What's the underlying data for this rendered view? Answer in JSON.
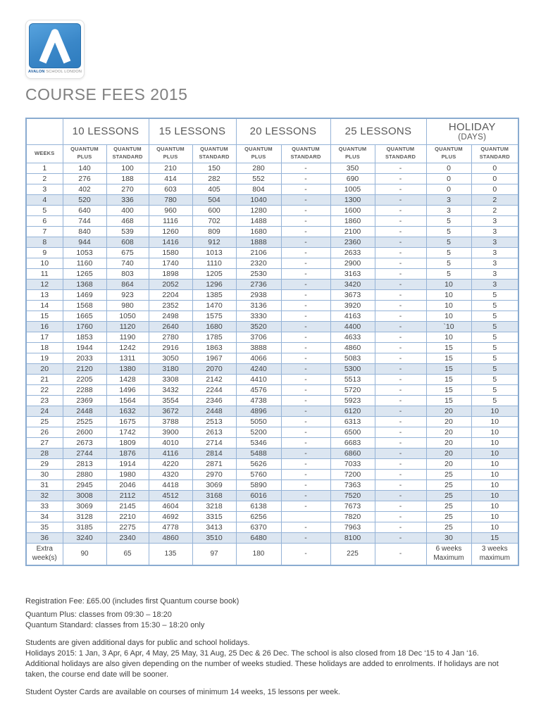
{
  "logo": {
    "brand": "AVALON",
    "tagline": "SCHOOL LONDON",
    "icon": "caret-a-icon",
    "blue": "#3a87c8"
  },
  "title": "COURSE FEES 2015",
  "table": {
    "weeks_header": "WEEKS",
    "group_headers": [
      "10 LESSONS",
      "15 LESSONS",
      "20 LESSONS",
      "25 LESSONS"
    ],
    "holiday_header": {
      "line1": "HOLIDAY",
      "line2": "(DAYS)"
    },
    "sub_headers": {
      "plus": "QUANTUM\nPLUS",
      "standard": "QUANTUM\nSTANDARD"
    },
    "border_color": "#95b3d7",
    "shaded_row_color": "#dce6f1",
    "rows": [
      {
        "week": "1",
        "shaded": false,
        "cells": [
          "140",
          "100",
          "210",
          "150",
          "280",
          "-",
          "350",
          "-",
          "0",
          "0"
        ]
      },
      {
        "week": "2",
        "shaded": false,
        "cells": [
          "276",
          "188",
          "414",
          "282",
          "552",
          "-",
          "690",
          "-",
          "0",
          "0"
        ]
      },
      {
        "week": "3",
        "shaded": false,
        "cells": [
          "402",
          "270",
          "603",
          "405",
          "804",
          "-",
          "1005",
          "-",
          "0",
          "0"
        ]
      },
      {
        "week": "4",
        "shaded": true,
        "cells": [
          "520",
          "336",
          "780",
          "504",
          "1040",
          "-",
          "1300",
          "-",
          "3",
          "2"
        ]
      },
      {
        "week": "5",
        "shaded": false,
        "cells": [
          "640",
          "400",
          "960",
          "600",
          "1280",
          "-",
          "1600",
          "-",
          "3",
          "2"
        ]
      },
      {
        "week": "6",
        "shaded": false,
        "cells": [
          "744",
          "468",
          "1116",
          "702",
          "1488",
          "-",
          "1860",
          "-",
          "5",
          "3"
        ]
      },
      {
        "week": "7",
        "shaded": false,
        "cells": [
          "840",
          "539",
          "1260",
          "809",
          "1680",
          "-",
          "2100",
          "-",
          "5",
          "3"
        ]
      },
      {
        "week": "8",
        "shaded": true,
        "cells": [
          "944",
          "608",
          "1416",
          "912",
          "1888",
          "-",
          "2360",
          "-",
          "5",
          "3"
        ]
      },
      {
        "week": "9",
        "shaded": false,
        "cells": [
          "1053",
          "675",
          "1580",
          "1013",
          "2106",
          "-",
          "2633",
          "-",
          "5",
          "3"
        ]
      },
      {
        "week": "10",
        "shaded": false,
        "cells": [
          "1160",
          "740",
          "1740",
          "1110",
          "2320",
          "-",
          "2900",
          "-",
          "5",
          "3"
        ]
      },
      {
        "week": "11",
        "shaded": false,
        "cells": [
          "1265",
          "803",
          "1898",
          "1205",
          "2530",
          "-",
          "3163",
          "-",
          "5",
          "3"
        ]
      },
      {
        "week": "12",
        "shaded": true,
        "cells": [
          "1368",
          "864",
          "2052",
          "1296",
          "2736",
          "-",
          "3420",
          "-",
          "10",
          "3"
        ]
      },
      {
        "week": "13",
        "shaded": false,
        "cells": [
          "1469",
          "923",
          "2204",
          "1385",
          "2938",
          "-",
          "3673",
          "-",
          "10",
          "5"
        ]
      },
      {
        "week": "14",
        "shaded": false,
        "cells": [
          "1568",
          "980",
          "2352",
          "1470",
          "3136",
          "-",
          "3920",
          "-",
          "10",
          "5"
        ]
      },
      {
        "week": "15",
        "shaded": false,
        "cells": [
          "1665",
          "1050",
          "2498",
          "1575",
          "3330",
          "-",
          "4163",
          "-",
          "10",
          "5"
        ]
      },
      {
        "week": "16",
        "shaded": true,
        "cells": [
          "1760",
          "1120",
          "2640",
          "1680",
          "3520",
          "-",
          "4400",
          "-",
          "`10",
          "5"
        ]
      },
      {
        "week": "17",
        "shaded": false,
        "cells": [
          "1853",
          "1190",
          "2780",
          "1785",
          "3706",
          "-",
          "4633",
          "-",
          "10",
          "5"
        ]
      },
      {
        "week": "18",
        "shaded": false,
        "cells": [
          "1944",
          "1242",
          "2916",
          "1863",
          "3888",
          "-",
          "4860",
          "-",
          "15",
          "5"
        ]
      },
      {
        "week": "19",
        "shaded": false,
        "cells": [
          "2033",
          "1311",
          "3050",
          "1967",
          "4066",
          "-",
          "5083",
          "-",
          "15",
          "5"
        ]
      },
      {
        "week": "20",
        "shaded": true,
        "cells": [
          "2120",
          "1380",
          "3180",
          "2070",
          "4240",
          "-",
          "5300",
          "-",
          "15",
          "5"
        ]
      },
      {
        "week": "21",
        "shaded": false,
        "cells": [
          "2205",
          "1428",
          "3308",
          "2142",
          "4410",
          "-",
          "5513",
          "-",
          "15",
          "5"
        ]
      },
      {
        "week": "22",
        "shaded": false,
        "cells": [
          "2288",
          "1496",
          "3432",
          "2244",
          "4576",
          "-",
          "5720",
          "-",
          "15",
          "5"
        ]
      },
      {
        "week": "23",
        "shaded": false,
        "cells": [
          "2369",
          "1564",
          "3554",
          "2346",
          "4738",
          "-",
          "5923",
          "-",
          "15",
          "5"
        ]
      },
      {
        "week": "24",
        "shaded": true,
        "cells": [
          "2448",
          "1632",
          "3672",
          "2448",
          "4896",
          "-",
          "6120",
          "-",
          "20",
          "10"
        ]
      },
      {
        "week": "25",
        "shaded": false,
        "cells": [
          "2525",
          "1675",
          "3788",
          "2513",
          "5050",
          "-",
          "6313",
          "-",
          "20",
          "10"
        ]
      },
      {
        "week": "26",
        "shaded": false,
        "cells": [
          "2600",
          "1742",
          "3900",
          "2613",
          "5200",
          "-",
          "6500",
          "-",
          "20",
          "10"
        ]
      },
      {
        "week": "27",
        "shaded": false,
        "cells": [
          "2673",
          "1809",
          "4010",
          "2714",
          "5346",
          "-",
          "6683",
          "-",
          "20",
          "10"
        ]
      },
      {
        "week": "28",
        "shaded": true,
        "cells": [
          "2744",
          "1876",
          "4116",
          "2814",
          "5488",
          "-",
          "6860",
          "-",
          "20",
          "10"
        ]
      },
      {
        "week": "29",
        "shaded": false,
        "cells": [
          "2813",
          "1914",
          "4220",
          "2871",
          "5626",
          "-",
          "7033",
          "-",
          "20",
          "10"
        ]
      },
      {
        "week": "30",
        "shaded": false,
        "cells": [
          "2880",
          "1980",
          "4320",
          "2970",
          "5760",
          "-",
          "7200",
          "-",
          "25",
          "10"
        ]
      },
      {
        "week": "31",
        "shaded": false,
        "cells": [
          "2945",
          "2046",
          "4418",
          "3069",
          "5890",
          "-",
          "7363",
          "-",
          "25",
          "10"
        ]
      },
      {
        "week": "32",
        "shaded": true,
        "cells": [
          "3008",
          "2112",
          "4512",
          "3168",
          "6016",
          "-",
          "7520",
          "-",
          "25",
          "10"
        ]
      },
      {
        "week": "33",
        "shaded": false,
        "cells": [
          "3069",
          "2145",
          "4604",
          "3218",
          "6138",
          "-",
          "7673",
          "-",
          "25",
          "10"
        ]
      },
      {
        "week": "34",
        "shaded": false,
        "cells": [
          "3128",
          "2210",
          "4692",
          "3315",
          "6256",
          "",
          "7820",
          "-",
          "25",
          "10"
        ]
      },
      {
        "week": "35",
        "shaded": false,
        "cells": [
          "3185",
          "2275",
          "4778",
          "3413",
          "6370",
          "-",
          "7963",
          "-",
          "25",
          "10"
        ]
      },
      {
        "week": "36",
        "shaded": true,
        "cells": [
          "3240",
          "2340",
          "4860",
          "3510",
          "6480",
          "-",
          "8100",
          "-",
          "30",
          "15"
        ]
      }
    ],
    "extra_row": {
      "label": "Extra\nweek(s)",
      "cells": [
        "90",
        "65",
        "135",
        "97",
        "180",
        "-",
        "225",
        "-",
        "6 weeks\nMaximum",
        "3 weeks\nmaximum"
      ]
    }
  },
  "notes": [
    {
      "lines": [
        "Registration Fee: £65.00 (includes first Quantum course book)"
      ]
    },
    {
      "lines": [
        "Quantum Plus: classes from 09:30 – 18:20",
        "Quantum Standard: classes from 15:30 – 18:20 only"
      ]
    },
    {
      "lines": [
        "Students are given additional days for public and school holidays.",
        "Holidays 2015: 1 Jan, 3 Apr, 6 Apr, 4 May, 25 May, 31 Aug, 25 Dec & 26 Dec. The school is also closed from 18 Dec ‘15 to 4 Jan ‘16.",
        "Additional holidays are also given depending on the number of weeks studied. These holidays are added to enrolments. If holidays are not taken, the course end date will be sooner."
      ]
    },
    {
      "lines": [
        "Student Oyster Cards are available on courses of minimum 14 weeks, 15 lessons per week."
      ]
    }
  ]
}
